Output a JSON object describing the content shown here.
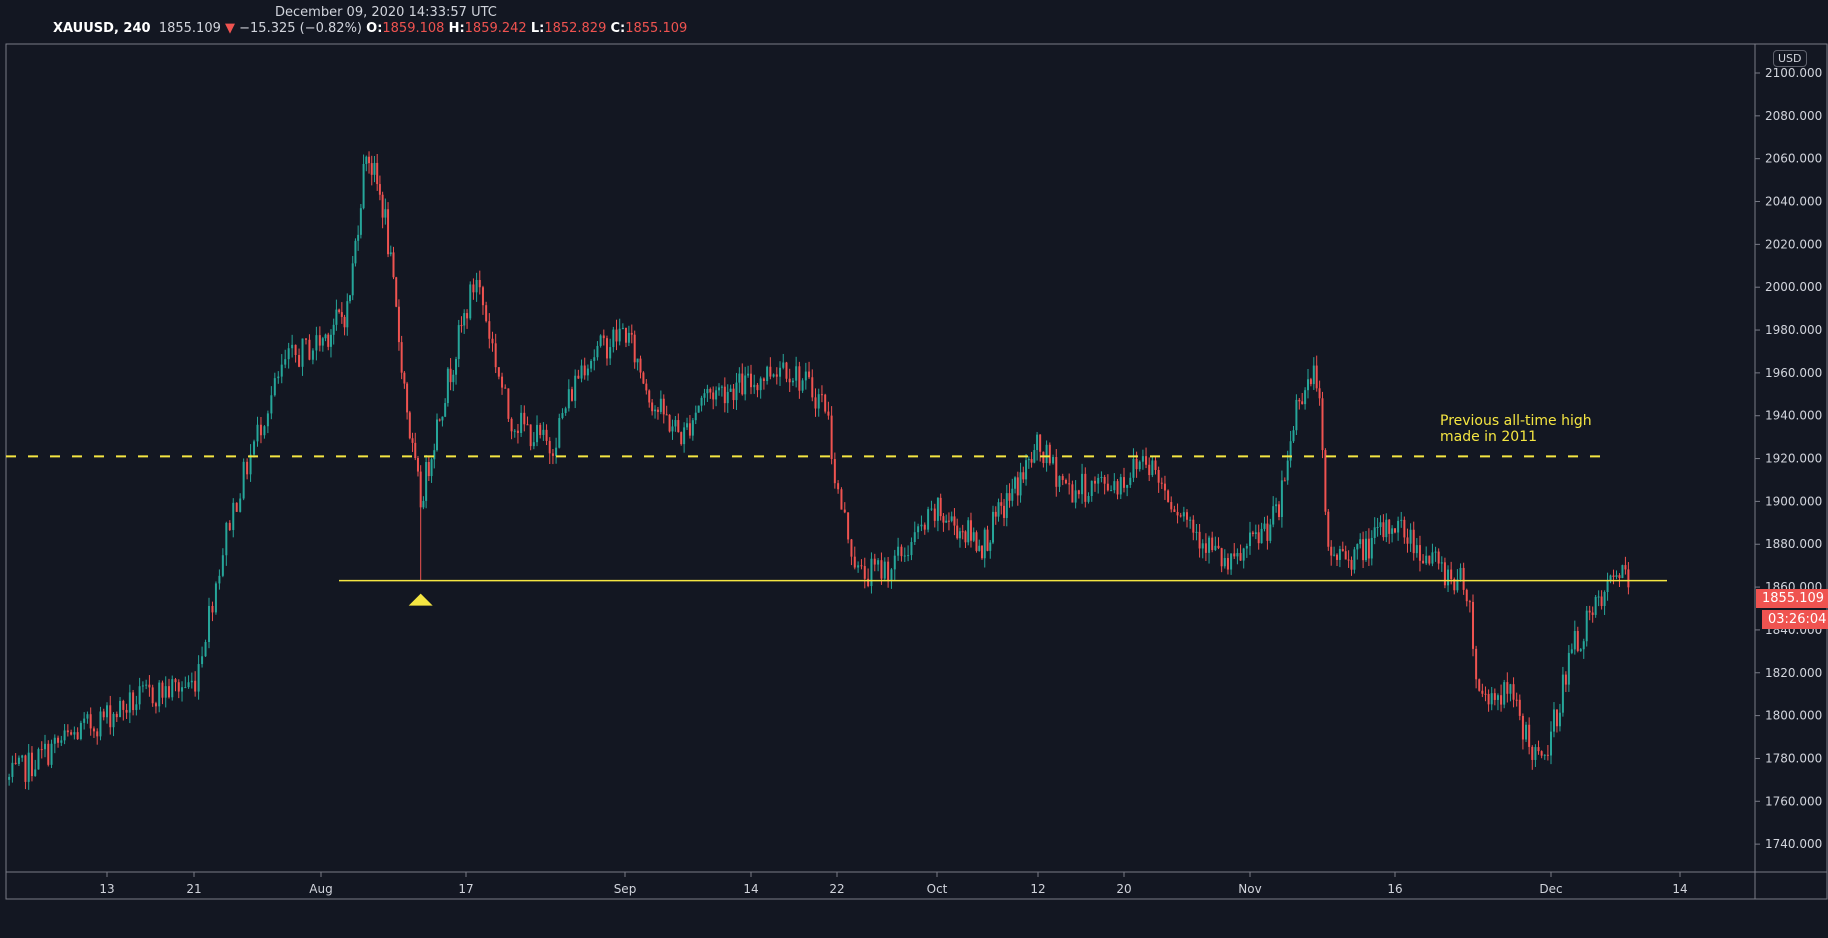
{
  "header": {
    "datetime": "December 09, 2020 14:33:57 UTC",
    "symbol": "XAUUSD, 240",
    "last": "1855.109",
    "change": "−15.325 (−0.82%)",
    "o_label": "O:",
    "open": "1859.108",
    "h_label": "H:",
    "high": "1859.242",
    "l_label": "L:",
    "low": "1852.829",
    "c_label": "C:",
    "close": "1855.109"
  },
  "price_axis": {
    "currency": "USD",
    "last_price_label": "1855.109",
    "countdown": "03:26:04"
  },
  "annotation": {
    "line1": "Previous all-time high",
    "line2": "made in 2011"
  },
  "colors": {
    "up": "#26a69a",
    "down": "#ef5350",
    "level": "#f5e642",
    "background": "#131722"
  },
  "chart_data": {
    "type": "candlestick",
    "title": "XAUUSD, 240",
    "ylabel": "USD",
    "ylim": [
      1730,
      2110
    ],
    "y_ticks": [
      2100,
      2080,
      2060,
      2040,
      2020,
      2000,
      1980,
      1960,
      1940,
      1920,
      1900,
      1880,
      1860,
      1840,
      1820,
      1800,
      1780,
      1760,
      1740
    ],
    "x_ticks": [
      {
        "label": "13",
        "doy": 195
      },
      {
        "label": "21",
        "doy": 203
      },
      {
        "label": "Aug",
        "doy": 214
      },
      {
        "label": "17",
        "doy": 230
      },
      {
        "label": "Sep",
        "doy": 245
      },
      {
        "label": "14",
        "doy": 258
      },
      {
        "label": "22",
        "doy": 266
      },
      {
        "label": "Oct",
        "doy": 275
      },
      {
        "label": "12",
        "doy": 286
      },
      {
        "label": "20",
        "doy": 294
      },
      {
        "label": "Nov",
        "doy": 306
      },
      {
        "label": "16",
        "doy": 321
      },
      {
        "label": "Dec",
        "doy": 336
      },
      {
        "label": "14",
        "doy": 349
      }
    ],
    "price_path": [
      [
        186,
        1770
      ],
      [
        190,
        1785
      ],
      [
        195,
        1800
      ],
      [
        199,
        1810
      ],
      [
        203,
        1815
      ],
      [
        206,
        1890
      ],
      [
        209,
        1940
      ],
      [
        211,
        1965
      ],
      [
        214,
        1975
      ],
      [
        217,
        1990
      ],
      [
        219,
        2065
      ],
      [
        221,
        2035
      ],
      [
        224,
        1925
      ],
      [
        225,
        1900
      ],
      [
        227,
        1940
      ],
      [
        231,
        2005
      ],
      [
        234,
        1940
      ],
      [
        238,
        1925
      ],
      [
        241,
        1965
      ],
      [
        245,
        1980
      ],
      [
        248,
        1945
      ],
      [
        251,
        1930
      ],
      [
        253,
        1950
      ],
      [
        258,
        1955
      ],
      [
        261,
        1965
      ],
      [
        265,
        1945
      ],
      [
        266,
        1905
      ],
      [
        268,
        1865
      ],
      [
        271,
        1870
      ],
      [
        275,
        1895
      ],
      [
        280,
        1880
      ],
      [
        286,
        1925
      ],
      [
        289,
        1905
      ],
      [
        294,
        1910
      ],
      [
        296,
        1922
      ],
      [
        298,
        1905
      ],
      [
        302,
        1880
      ],
      [
        304,
        1868
      ],
      [
        309,
        1895
      ],
      [
        311,
        1950
      ],
      [
        313,
        1960
      ],
      [
        314,
        1875
      ],
      [
        317,
        1875
      ],
      [
        321,
        1890
      ],
      [
        325,
        1870
      ],
      [
        328,
        1860
      ],
      [
        329,
        1810
      ],
      [
        332,
        1810
      ],
      [
        335,
        1775
      ],
      [
        336,
        1790
      ],
      [
        338,
        1830
      ],
      [
        342,
        1860
      ],
      [
        343,
        1870
      ],
      [
        344,
        1855
      ]
    ],
    "levels": [
      {
        "name": "previous-ath-2011",
        "price": 1921,
        "style": "dashed"
      },
      {
        "name": "support",
        "price": 1863,
        "style": "solid"
      }
    ],
    "marker": {
      "type": "triangle-up",
      "doy": 225,
      "price": 1863
    }
  }
}
